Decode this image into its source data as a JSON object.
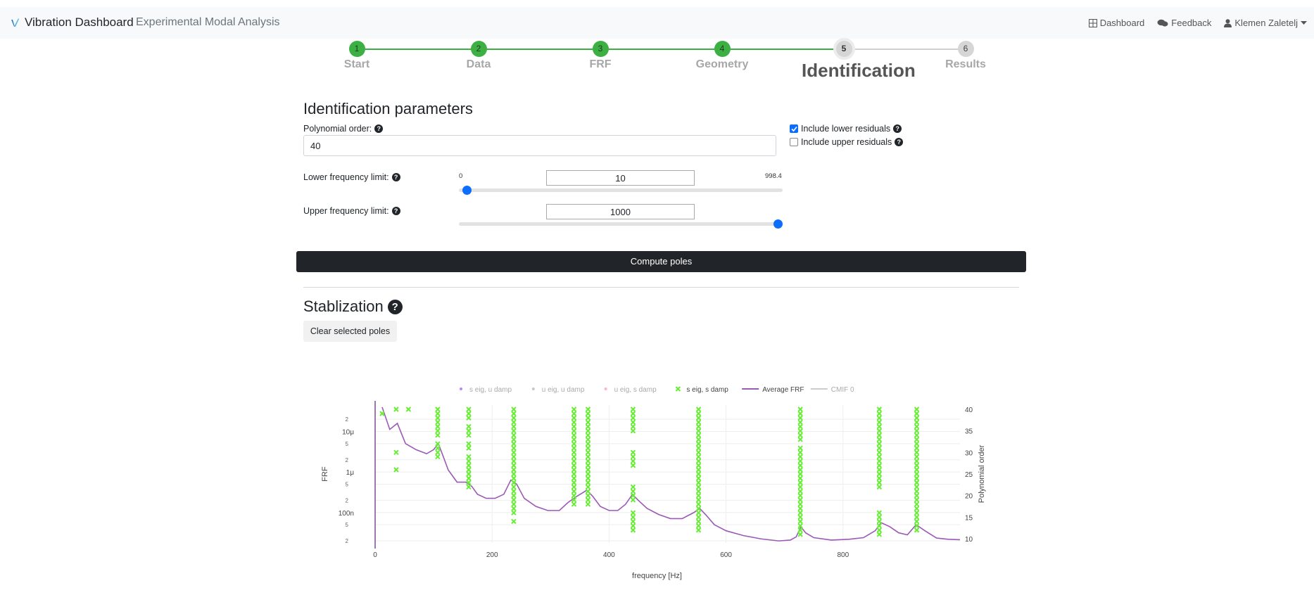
{
  "navbar": {
    "brand": "Vibration Dashboard",
    "subtitle": "Experimental Modal Analysis",
    "links": [
      {
        "label": "Dashboard",
        "icon": "grid-icon"
      },
      {
        "label": "Feedback",
        "icon": "chat-bubbles-icon"
      },
      {
        "label": "Klemen Zaletelj",
        "icon": "user-icon"
      }
    ]
  },
  "stepper": {
    "steps": [
      {
        "num": "1",
        "label": "Start",
        "state": "done"
      },
      {
        "num": "2",
        "label": "Data",
        "state": "done"
      },
      {
        "num": "3",
        "label": "FRF",
        "state": "done"
      },
      {
        "num": "4",
        "label": "Geometry",
        "state": "done"
      },
      {
        "num": "5",
        "label": "Identification",
        "state": "active"
      },
      {
        "num": "6",
        "label": "Results",
        "state": "future"
      }
    ]
  },
  "params": {
    "title": "Identification parameters",
    "polynomial_order_label": "Polynomial order:",
    "polynomial_order_value": "40",
    "lower_label": "Lower frequency limit:",
    "lower_value": "10",
    "lower_min": "0",
    "lower_max": "998.4",
    "upper_label": "Upper frequency limit:",
    "upper_value": "1000",
    "include_lower_label": "Include lower residuals",
    "include_lower_checked": true,
    "include_upper_label": "Include upper residuals",
    "include_upper_checked": false,
    "compute_button": "Compute poles"
  },
  "stabilization": {
    "title": "Stablization",
    "clear_button": "Clear selected poles"
  },
  "chart_data": {
    "type": "scatter",
    "title": "",
    "xlabel": "frequency [Hz]",
    "ylabel": "FRF",
    "y2label": "Polynomial order",
    "xlim": [
      0,
      1000
    ],
    "x_ticks": [
      0,
      200,
      400,
      600,
      800
    ],
    "y_log_ticks": [
      {
        "label": "10μ",
        "major": true
      },
      {
        "label": "1μ",
        "major": true
      },
      {
        "label": "100n",
        "major": true
      }
    ],
    "y2_ticks": [
      10,
      15,
      20,
      25,
      30,
      35,
      40
    ],
    "legend": [
      {
        "name": "s eig, u damp",
        "symbol": "dot",
        "color": "#b388ff"
      },
      {
        "name": "u eig, u damp",
        "symbol": "dot",
        "color": "#c8c8c8"
      },
      {
        "name": "u eig, s damp",
        "symbol": "dot",
        "color": "#ffb6c1"
      },
      {
        "name": "s eig, s damp",
        "symbol": "x",
        "color": "#66ee33"
      },
      {
        "name": "Average FRF",
        "symbol": "line",
        "color": "#9b59b6"
      },
      {
        "name": "CMIF 0",
        "symbol": "line",
        "color": "#cccccc"
      }
    ],
    "legend_position": "top",
    "stable_pole_columns": [
      {
        "freq": 12,
        "orders": [
          39
        ]
      },
      {
        "freq": 36,
        "orders": [
          40,
          30,
          26
        ]
      },
      {
        "freq": 57,
        "orders": [
          40
        ]
      },
      {
        "freq": 107,
        "orders": [
          40,
          39,
          38,
          37,
          36,
          35,
          34,
          32,
          31,
          30,
          29
        ]
      },
      {
        "freq": 160,
        "orders": [
          40,
          39,
          38,
          36,
          35,
          34,
          32,
          31,
          29,
          28,
          27,
          26,
          25,
          24,
          23,
          22
        ]
      },
      {
        "freq": 237,
        "orders": [
          40,
          39,
          38,
          37,
          36,
          35,
          34,
          33,
          32,
          31,
          30,
          29,
          28,
          27,
          26,
          25,
          24,
          23,
          22,
          21,
          20,
          19,
          18,
          17,
          16,
          14
        ]
      },
      {
        "freq": 340,
        "orders": [
          40,
          39,
          38,
          37,
          36,
          35,
          34,
          33,
          32,
          31,
          30,
          29,
          28,
          27,
          26,
          25,
          24,
          23,
          22,
          21,
          20,
          19,
          18
        ]
      },
      {
        "freq": 364,
        "orders": [
          40,
          39,
          38,
          37,
          36,
          35,
          34,
          33,
          32,
          31,
          30,
          29,
          28,
          27,
          26,
          25,
          24,
          23,
          22,
          21,
          20,
          19,
          18
        ]
      },
      {
        "freq": 441,
        "orders": [
          40,
          39,
          38,
          37,
          36,
          35,
          30,
          29,
          28,
          27,
          22,
          21,
          20,
          19,
          16,
          15,
          14,
          13,
          12
        ]
      },
      {
        "freq": 553,
        "orders": [
          40,
          39,
          38,
          37,
          36,
          35,
          34,
          33,
          32,
          31,
          30,
          29,
          28,
          27,
          26,
          25,
          24,
          23,
          22,
          21,
          20,
          19,
          18,
          17,
          16,
          15,
          14,
          13,
          12
        ]
      },
      {
        "freq": 727,
        "orders": [
          40,
          39,
          38,
          37,
          36,
          35,
          34,
          33,
          31,
          30,
          29,
          28,
          27,
          26,
          25,
          24,
          23,
          22,
          21,
          20,
          19,
          18,
          17,
          16,
          15,
          14,
          13,
          12,
          11
        ]
      },
      {
        "freq": 862,
        "orders": [
          40,
          39,
          38,
          37,
          36,
          35,
          34,
          33,
          32,
          31,
          30,
          29,
          28,
          27,
          26,
          25,
          24,
          23,
          22,
          16,
          15,
          14,
          13,
          12,
          11
        ]
      },
      {
        "freq": 926,
        "orders": [
          40,
          39,
          38,
          37,
          36,
          35,
          34,
          33,
          32,
          31,
          30,
          29,
          28,
          27,
          26,
          25,
          24,
          23,
          22,
          21,
          20,
          19,
          18,
          17,
          16,
          15,
          14,
          13,
          12
        ]
      }
    ],
    "average_frf": {
      "x": [
        12,
        25,
        38,
        52,
        70,
        88,
        100,
        108,
        116,
        125,
        140,
        155,
        165,
        175,
        190,
        205,
        220,
        232,
        242,
        255,
        275,
        295,
        315,
        330,
        345,
        362,
        372,
        385,
        400,
        415,
        428,
        440,
        450,
        465,
        485,
        505,
        525,
        545,
        555,
        565,
        580,
        600,
        630,
        660,
        690,
        710,
        720,
        728,
        736,
        750,
        780,
        810,
        835,
        855,
        865,
        880,
        895,
        910,
        925,
        940,
        960,
        980,
        1000
      ],
      "y_log10": [
        -4.4,
        -4.95,
        -4.8,
        -5.3,
        -5.45,
        -5.55,
        -5.45,
        -5.3,
        -5.6,
        -5.95,
        -6.25,
        -6.25,
        -6.35,
        -6.55,
        -6.65,
        -6.65,
        -6.55,
        -6.2,
        -6.3,
        -6.65,
        -6.85,
        -6.95,
        -6.95,
        -6.75,
        -6.6,
        -6.45,
        -6.6,
        -6.85,
        -6.95,
        -6.95,
        -6.8,
        -6.55,
        -6.7,
        -6.9,
        -7.05,
        -7.15,
        -7.15,
        -7.0,
        -6.9,
        -7.05,
        -7.3,
        -7.45,
        -7.57,
        -7.65,
        -7.7,
        -7.68,
        -7.6,
        -7.35,
        -7.5,
        -7.62,
        -7.68,
        -7.66,
        -7.62,
        -7.45,
        -7.25,
        -7.35,
        -7.5,
        -7.55,
        -7.3,
        -7.45,
        -7.63,
        -7.66,
        -7.67
      ]
    },
    "ylog_range": [
      -7.75,
      -4.35
    ]
  }
}
